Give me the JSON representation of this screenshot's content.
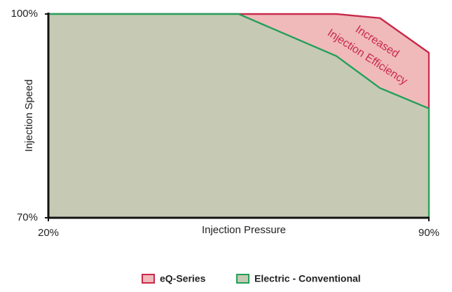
{
  "chart_data": {
    "type": "area",
    "x": [
      20,
      55,
      73,
      81,
      90
    ],
    "series": [
      {
        "name": "eQ-Series",
        "color": "#c8294a",
        "fill": "#f0b9ba",
        "values": [
          100,
          100,
          100,
          99.4,
          94.3
        ]
      },
      {
        "name": "Electric - Conventional",
        "color": "#22a05a",
        "fill": "#c6c9b3",
        "values": [
          100,
          100,
          93.8,
          89.1,
          86.1
        ]
      }
    ],
    "xlabel": "Injection Pressure",
    "ylabel": "Injection Speed",
    "xlim": [
      20,
      90
    ],
    "ylim": [
      70,
      100
    ],
    "xticks": [
      {
        "value": 20,
        "label": "20%"
      },
      {
        "value": 90,
        "label": "90%"
      }
    ],
    "yticks": [
      {
        "value": 70,
        "label": "70%"
      },
      {
        "value": 100,
        "label": "100%"
      }
    ],
    "annotations": [
      "Increased",
      "Injection Efficiency"
    ],
    "annotation_color": "#c8294a",
    "legend": "bottom"
  }
}
